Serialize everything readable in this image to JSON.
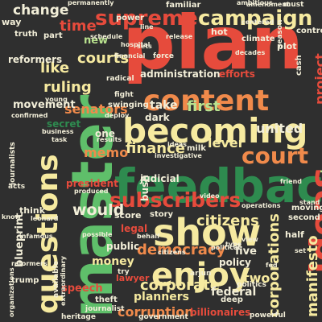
{
  "colors": {
    "background": "#2f2f2f",
    "red": "#e64b3c",
    "dark_red": "#c23b35",
    "green": "#5fbf6a",
    "dark_green": "#2e8b4f",
    "light_green": "#b9e28f",
    "yellow": "#f6eaa0",
    "light": "#f2eed8",
    "orange": "#f08a4b"
  },
  "words": [
    {
      "text": "plan",
      "color": "red",
      "rot": 0,
      "big": true
    },
    {
      "text": "master",
      "color": "green",
      "rot": -90,
      "big": true
    },
    {
      "text": "feedback",
      "color": "dark_green",
      "rot": 0,
      "big": true
    },
    {
      "text": "becoming",
      "color": "yellow",
      "rot": 0
    },
    {
      "text": "content",
      "color": "orange",
      "rot": 0
    },
    {
      "text": "questions",
      "color": "yellow",
      "rot": -90
    },
    {
      "text": "ideas",
      "color": "red",
      "rot": -90
    },
    {
      "text": "show",
      "color": "yellow",
      "rot": 0
    },
    {
      "text": "enjoy",
      "color": "yellow",
      "rot": 0
    },
    {
      "text": "supreme",
      "color": "red",
      "rot": 0
    },
    {
      "text": "campaign",
      "color": "yellow",
      "rot": 0
    },
    {
      "text": "subscribers",
      "color": "red",
      "rot": 0
    },
    {
      "text": "court",
      "color": "orange",
      "rot": 0
    },
    {
      "text": "change",
      "color": "light",
      "rot": 0
    },
    {
      "text": "time",
      "color": "red",
      "rot": 0
    },
    {
      "text": "courts",
      "color": "yellow",
      "rot": 0
    },
    {
      "text": "like",
      "color": "yellow",
      "rot": 0
    },
    {
      "text": "ruling",
      "color": "yellow",
      "rot": 0
    },
    {
      "text": "first",
      "color": "light_green",
      "rot": 0
    },
    {
      "text": "united",
      "color": "light",
      "rot": 0
    },
    {
      "text": "finance",
      "color": "yellow",
      "rot": 0
    },
    {
      "text": "senators",
      "color": "orange",
      "rot": 0
    },
    {
      "text": "lever",
      "color": "yellow",
      "rot": 0
    },
    {
      "text": "memo",
      "color": "orange",
      "rot": 0
    },
    {
      "text": "would",
      "color": "light",
      "rot": 0
    },
    {
      "text": "citizens",
      "color": "yellow",
      "rot": 0
    },
    {
      "text": "democracy",
      "color": "orange",
      "rot": 0
    },
    {
      "text": "money",
      "color": "yellow",
      "rot": 0
    },
    {
      "text": "corporate",
      "color": "yellow",
      "rot": 0
    },
    {
      "text": "corruption",
      "color": "orange",
      "rot": 0
    },
    {
      "text": "manifesto",
      "color": "yellow",
      "rot": -90
    },
    {
      "text": "corporations",
      "color": "yellow",
      "rot": -90
    },
    {
      "text": "federal",
      "color": "light",
      "rot": 0
    },
    {
      "text": "planners",
      "color": "yellow",
      "rot": 0
    },
    {
      "text": "policy",
      "color": "light",
      "rot": 0
    },
    {
      "text": "five",
      "color": "light",
      "rot": 0
    },
    {
      "text": "two",
      "color": "yellow",
      "rot": 0
    },
    {
      "text": "project",
      "color": "red",
      "rot": -90
    },
    {
      "text": "series",
      "color": "light_green",
      "rot": -90
    },
    {
      "text": "movement",
      "color": "light",
      "rot": 0
    },
    {
      "text": "reformers",
      "color": "light",
      "rot": 0
    },
    {
      "text": "speech",
      "color": "red",
      "rot": 0
    },
    {
      "text": "blueprint",
      "color": "light",
      "rot": -90
    },
    {
      "text": "administration",
      "color": "light",
      "rot": 0
    },
    {
      "text": "efforts",
      "color": "red",
      "rot": 0
    },
    {
      "text": "take",
      "color": "light",
      "rot": 0
    },
    {
      "text": "dark",
      "color": "light",
      "rot": 0
    },
    {
      "text": "judicial",
      "color": "light",
      "rot": 0
    },
    {
      "text": "president",
      "color": "red",
      "rot": 0
    },
    {
      "text": "bush",
      "color": "light",
      "rot": -90
    },
    {
      "text": "legal",
      "color": "red",
      "rot": 0
    },
    {
      "text": "public",
      "color": "light",
      "rot": 0
    },
    {
      "text": "new",
      "color": "light_green",
      "rot": 0
    },
    {
      "text": "one",
      "color": "light",
      "rot": 0
    },
    {
      "text": "truth",
      "color": "light",
      "rot": 0
    },
    {
      "text": "part",
      "color": "light",
      "rot": 0
    },
    {
      "text": "way",
      "color": "light",
      "rot": 0
    },
    {
      "text": "power",
      "color": "light",
      "rot": 0
    },
    {
      "text": "familiar",
      "color": "light",
      "rot": 0
    },
    {
      "text": "climate",
      "color": "light",
      "rot": 0
    },
    {
      "text": "hot",
      "color": "light",
      "rot": 0
    },
    {
      "text": "plot",
      "color": "light",
      "rot": 0
    },
    {
      "text": "control",
      "color": "light",
      "rot": 0
    },
    {
      "text": "cash",
      "color": "light",
      "rot": -90
    },
    {
      "text": "deep",
      "color": "light",
      "rot": 0
    },
    {
      "text": "half",
      "color": "light",
      "rot": 0
    },
    {
      "text": "second",
      "color": "light",
      "rot": 0
    },
    {
      "text": "moving",
      "color": "light",
      "rot": 0
    },
    {
      "text": "trump",
      "color": "light",
      "rot": 0
    },
    {
      "text": "think",
      "color": "light",
      "rot": 0
    },
    {
      "text": "lawyer",
      "color": "red",
      "rot": 0
    },
    {
      "text": "score",
      "color": "light",
      "rot": 0
    },
    {
      "text": "story",
      "color": "light",
      "rot": 0
    },
    {
      "text": "secret",
      "color": "dark_green",
      "rot": 0
    },
    {
      "text": "milk",
      "color": "light",
      "rot": 0
    },
    {
      "text": "theft",
      "color": "light",
      "rot": 0
    },
    {
      "text": "journalist",
      "color": "light",
      "rot": 0
    },
    {
      "text": "heritage",
      "color": "light",
      "rot": 0
    },
    {
      "text": "billionaires",
      "color": "red",
      "rot": 0
    },
    {
      "text": "government",
      "color": "light",
      "rot": 0
    },
    {
      "text": "powerful",
      "color": "light",
      "rot": 0
    },
    {
      "text": "schedule",
      "color": "light",
      "rot": 0
    },
    {
      "text": "radical",
      "color": "light",
      "rot": 0
    },
    {
      "text": "financial",
      "color": "light",
      "rot": 0
    },
    {
      "text": "young",
      "color": "light",
      "rot": 0
    },
    {
      "text": "journalists",
      "color": "light",
      "rot": -90
    },
    {
      "text": "available",
      "color": "light",
      "rot": -90
    },
    {
      "text": "confirmed",
      "color": "light",
      "rot": 0
    },
    {
      "text": "business",
      "color": "light",
      "rot": 0
    },
    {
      "text": "task",
      "color": "light",
      "rot": 0
    },
    {
      "text": "results",
      "color": "light",
      "rot": 0
    },
    {
      "text": "swinging",
      "color": "light",
      "rot": 0
    },
    {
      "text": "fight",
      "color": "light",
      "rot": 0
    },
    {
      "text": "release",
      "color": "light",
      "rot": 0
    },
    {
      "text": "decades",
      "color": "light",
      "rot": 0
    },
    {
      "text": "ambitious",
      "color": "light",
      "rot": 0
    },
    {
      "text": "force",
      "color": "light",
      "rot": 0
    },
    {
      "text": "line",
      "color": "light",
      "rot": 0
    },
    {
      "text": "amendment",
      "color": "light",
      "rot": 0
    },
    {
      "text": "must",
      "color": "light",
      "rot": 0
    },
    {
      "text": "centered",
      "color": "light",
      "rot": 0
    },
    {
      "text": "season",
      "color": "light",
      "rot": -90
    },
    {
      "text": "acts",
      "color": "light",
      "rot": 0
    },
    {
      "text": "know",
      "color": "light",
      "rot": 0
    },
    {
      "text": "infamous",
      "color": "light",
      "rot": 0
    },
    {
      "text": "produced",
      "color": "light",
      "rot": 0
    },
    {
      "text": "possible",
      "color": "light",
      "rot": 0
    },
    {
      "text": "behalf",
      "color": "light",
      "rot": 0
    },
    {
      "text": "arjun",
      "color": "light",
      "rot": 0
    },
    {
      "text": "organizations",
      "color": "light",
      "rot": -90
    },
    {
      "text": "operations",
      "color": "light",
      "rot": 0
    },
    {
      "text": "politics",
      "color": "light",
      "rot": 0
    },
    {
      "text": "view",
      "color": "light",
      "rot": 0
    },
    {
      "text": "friend",
      "color": "light",
      "rot": 0
    },
    {
      "text": "stand",
      "color": "light",
      "rot": 0
    },
    {
      "text": "try",
      "color": "light",
      "rot": 0
    },
    {
      "text": "video",
      "color": "light",
      "rot": 0
    },
    {
      "text": "reformers",
      "color": "light",
      "rot": 0
    },
    {
      "text": "extraordinary",
      "color": "light",
      "rot": -90
    },
    {
      "text": "investigative",
      "color": "light",
      "rot": 0
    },
    {
      "text": "type",
      "color": "light",
      "rot": 0
    },
    {
      "text": "set",
      "color": "light",
      "rot": 0
    },
    {
      "text": "political",
      "color": "light",
      "rot": 0
    },
    {
      "text": "fed",
      "color": "light",
      "rot": 0
    },
    {
      "text": "citizens",
      "color": "light",
      "rot": 0
    },
    {
      "text": "leonard",
      "color": "light",
      "rot": 0
    },
    {
      "text": "permanently",
      "color": "light",
      "rot": 0
    },
    {
      "text": "deploy",
      "color": "light",
      "rot": 0
    },
    {
      "text": "hospital",
      "color": "light",
      "rot": 0
    },
    {
      "text": "sets",
      "color": "light",
      "rot": 0
    },
    {
      "text": "ideas",
      "color": "light",
      "rot": 0
    }
  ]
}
